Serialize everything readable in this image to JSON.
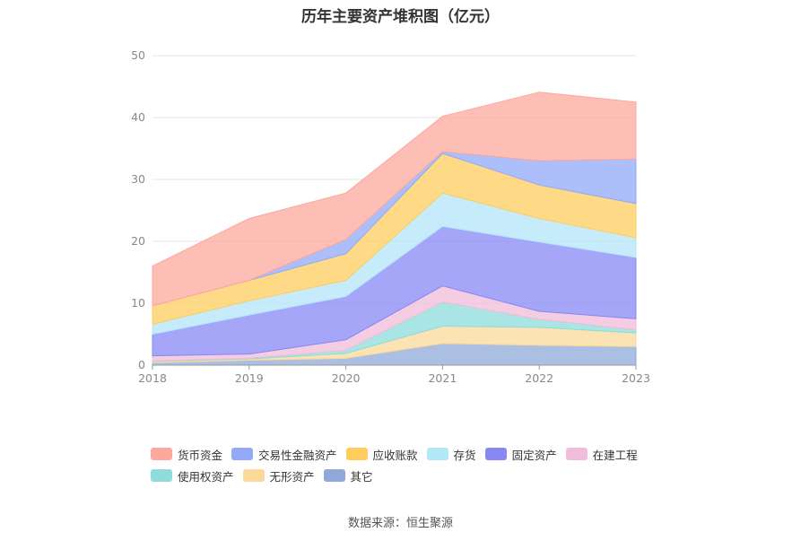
{
  "footer": {
    "source": "数据来源：恒生聚源"
  },
  "chart_data": {
    "type": "area",
    "stacked": true,
    "title": "历年主要资产堆积图（亿元）",
    "xlabel": "",
    "ylabel": "",
    "x": [
      "2018",
      "2019",
      "2020",
      "2021",
      "2022",
      "2023"
    ],
    "y_ticks": [
      "0",
      "10",
      "20",
      "30",
      "40",
      "50"
    ],
    "ylim": [
      0,
      50
    ],
    "grid": true,
    "legend_position": "bottom",
    "series": [
      {
        "name": "其它",
        "color": "#8fa9d8",
        "values": [
          0.4,
          0.8,
          1.1,
          3.5,
          3.2,
          3.0
        ]
      },
      {
        "name": "无形资产",
        "color": "#fbd99a",
        "values": [
          0.2,
          0.2,
          0.8,
          2.8,
          2.9,
          2.2
        ]
      },
      {
        "name": "使用权资产",
        "color": "#8edcdc",
        "values": [
          0.1,
          0.1,
          0.5,
          3.9,
          1.3,
          0.5
        ]
      },
      {
        "name": "在建工程",
        "color": "#f0bcd9",
        "values": [
          0.8,
          0.7,
          1.7,
          2.6,
          1.3,
          1.8
        ]
      },
      {
        "name": "固定资产",
        "color": "#8888f5",
        "values": [
          3.5,
          6.3,
          7.0,
          9.6,
          11.2,
          9.9
        ]
      },
      {
        "name": "存货",
        "color": "#b3e6f9",
        "values": [
          1.6,
          2.3,
          2.6,
          5.4,
          3.8,
          3.2
        ]
      },
      {
        "name": "应收账款",
        "color": "#fecd5e",
        "values": [
          3.0,
          3.3,
          4.3,
          6.4,
          5.4,
          5.5
        ]
      },
      {
        "name": "交易性金融资产",
        "color": "#92aaf8",
        "values": [
          0.0,
          0.0,
          2.3,
          0.3,
          3.9,
          7.2
        ]
      },
      {
        "name": "货币资金",
        "color": "#fca89e",
        "values": [
          6.4,
          10.0,
          7.5,
          5.7,
          11.1,
          9.2
        ]
      }
    ],
    "legend_order": [
      "货币资金",
      "交易性金融资产",
      "应收账款",
      "存货",
      "固定资产",
      "在建工程",
      "使用权资产",
      "无形资产",
      "其它"
    ]
  }
}
